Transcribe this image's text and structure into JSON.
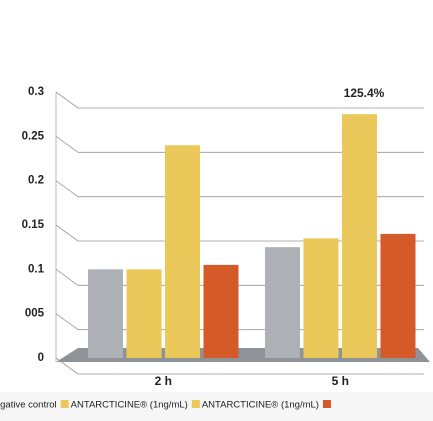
{
  "chart_data": {
    "type": "bar",
    "categories": [
      "2 h",
      "5 h"
    ],
    "series": [
      {
        "name": "Negative control",
        "color": "#adb1b6",
        "values": [
          0.1,
          0.125
        ]
      },
      {
        "name": "ANTARCTICINE® (1ng/mL)",
        "color": "#eac95a",
        "values": [
          0.1,
          0.135
        ]
      },
      {
        "name": "ANTARCTICINE® (1ng/mL)",
        "color": "#eac95a",
        "values": [
          0.24,
          0.275
        ]
      },
      {
        "color": "#d45a2a",
        "values": [
          0.105,
          0.14
        ]
      }
    ],
    "ylim": [
      0,
      0.3
    ],
    "yticks": [
      0,
      {
        "value": 0.05,
        "label": "005"
      },
      0.1,
      0.15,
      0.2,
      0.25,
      0.3
    ],
    "grid": true,
    "annotation": "125.4%"
  }
}
